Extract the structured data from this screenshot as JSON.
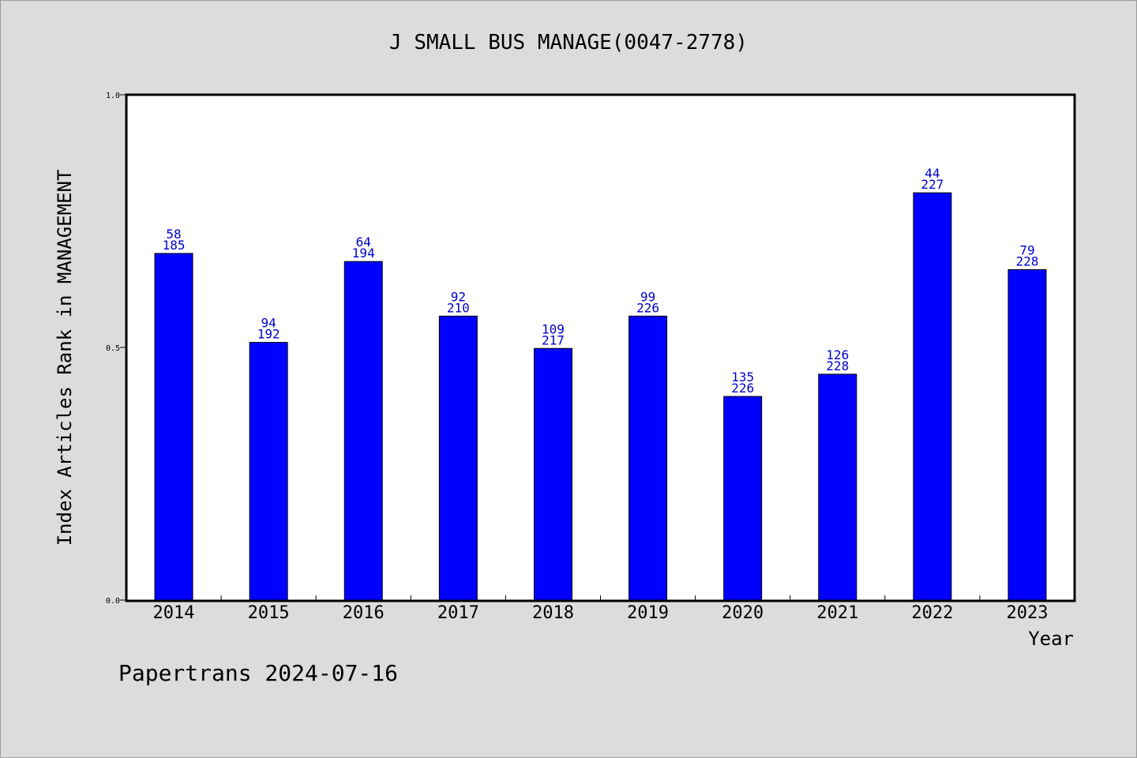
{
  "chart_data": {
    "type": "bar",
    "title": "J SMALL BUS MANAGE(0047-2778)",
    "xlabel": "Year",
    "ylabel": "Index Articles Rank in MANAGEMENT",
    "ylim": [
      0.0,
      1.0
    ],
    "yticks": [
      "0.0",
      "0.5",
      "1.0"
    ],
    "categories": [
      "2014",
      "2015",
      "2016",
      "2017",
      "2018",
      "2019",
      "2020",
      "2021",
      "2022",
      "2023"
    ],
    "values": [
      0.686,
      0.51,
      0.67,
      0.562,
      0.498,
      0.562,
      0.403,
      0.447,
      0.806,
      0.654
    ],
    "rank": [
      "58",
      "94",
      "64",
      "92",
      "109",
      "99",
      "135",
      "126",
      "44",
      "79"
    ],
    "total": [
      "185",
      "192",
      "194",
      "210",
      "217",
      "226",
      "226",
      "228",
      "227",
      "228"
    ],
    "bar_color": "#0000ff",
    "label_color": "#0000cc",
    "grid": false
  },
  "footer": "Papertrans 2024-07-16",
  "background_color": "#dcdcdc"
}
